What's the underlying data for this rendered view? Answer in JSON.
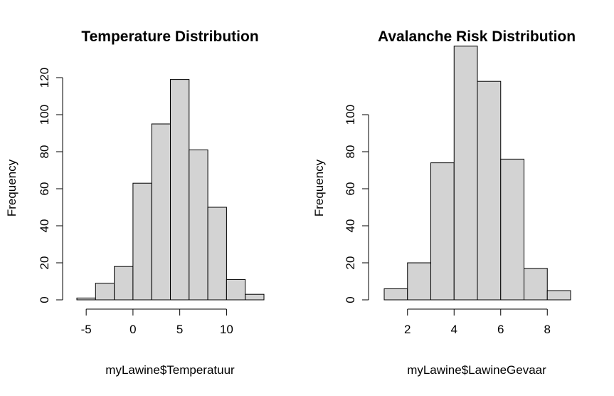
{
  "chart_data": [
    {
      "type": "bar",
      "title": "Temperature Distribution",
      "xlabel": "myLawine$Temperatuur",
      "ylabel": "Frequency",
      "bin_edges": [
        -6,
        -4,
        -2,
        0,
        2,
        4,
        6,
        8,
        10,
        12,
        14
      ],
      "values": [
        1,
        9,
        18,
        63,
        95,
        119,
        81,
        50,
        11,
        3
      ],
      "xticks": [
        -5,
        0,
        5,
        10
      ],
      "yticks": [
        0,
        20,
        40,
        60,
        80,
        100,
        120
      ],
      "ylim": [
        0,
        120
      ],
      "bar_color": "#d3d3d3",
      "grid": false
    },
    {
      "type": "bar",
      "title": "Avalanche Risk Distribution",
      "xlabel": "myLawine$LawineGevaar",
      "ylabel": "Frequency",
      "bin_edges": [
        1,
        2,
        3,
        4,
        5,
        6,
        7,
        8,
        9
      ],
      "values": [
        6,
        20,
        74,
        137,
        118,
        76,
        17,
        5
      ],
      "xticks": [
        2,
        4,
        6,
        8
      ],
      "yticks": [
        0,
        20,
        40,
        60,
        80,
        100
      ],
      "ylim": [
        0,
        120
      ],
      "bar_color": "#d3d3d3",
      "grid": false
    }
  ]
}
